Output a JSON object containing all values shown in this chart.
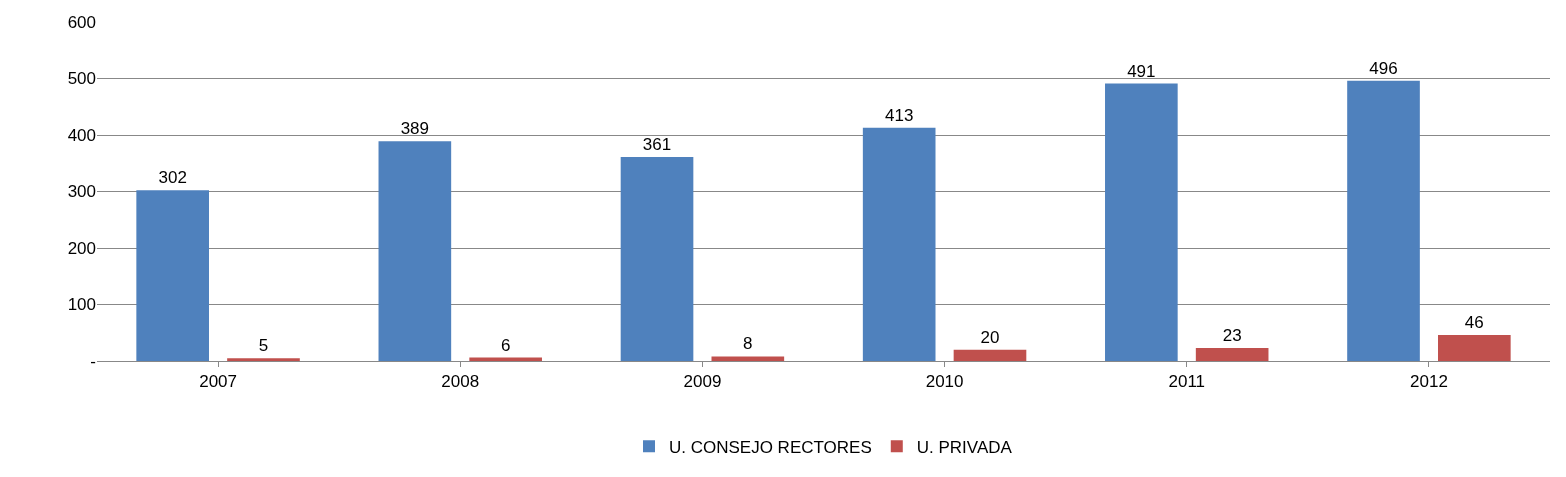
{
  "chart_data": {
    "type": "bar",
    "categories": [
      "2007",
      "2008",
      "2009",
      "2010",
      "2011",
      "2012"
    ],
    "series": [
      {
        "name": "U. CONSEJO RECTORES",
        "color": "#4f81bd",
        "values": [
          302,
          389,
          361,
          413,
          491,
          496
        ]
      },
      {
        "name": "U. PRIVADA",
        "color": "#c0504d",
        "values": [
          5,
          6,
          8,
          20,
          23,
          46
        ]
      }
    ],
    "ylim": [
      0,
      600
    ],
    "yticks": [
      {
        "value": 0,
        "label": "-"
      },
      100,
      200,
      300,
      400,
      500,
      600
    ],
    "grid": "y",
    "legend": "bottom",
    "data_labels": true
  }
}
